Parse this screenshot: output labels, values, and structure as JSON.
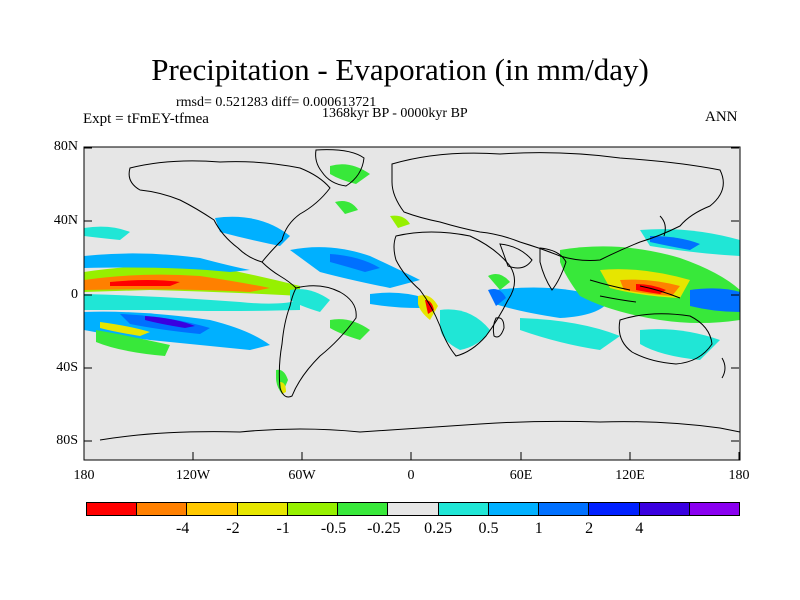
{
  "title": "Precipitation - Evaporation (in mm/day)",
  "stats": "rmsd= 0.521283  diff= 0.000613721",
  "period": "1368kyr BP - 0000kyr BP",
  "experiment": "Expt = tFmEY-tfmea",
  "season": "ANN",
  "lat_labels": [
    "80N",
    "40N",
    "0",
    "40S",
    "80S"
  ],
  "lon_labels": [
    "180",
    "120W",
    "60W",
    "0",
    "60E",
    "120E",
    "180"
  ],
  "colorbar": {
    "colors": [
      "#ff0000",
      "#ff8000",
      "#ffc800",
      "#e6e600",
      "#96f000",
      "#38e83a",
      "#e6e6e6",
      "#20e6d6",
      "#00b0ff",
      "#0070ff",
      "#0020ff",
      "#3a00e0",
      "#8a00f0"
    ],
    "labels": [
      "-4",
      "-2",
      "-1",
      "-0.5",
      "-0.25",
      "0.25",
      "0.5",
      "1",
      "2",
      "4"
    ]
  },
  "background_color": "#e6e6e6"
}
